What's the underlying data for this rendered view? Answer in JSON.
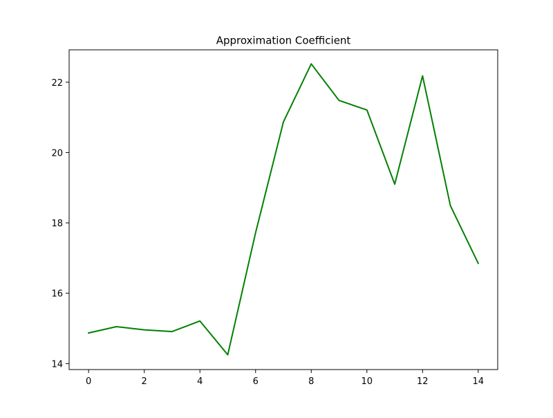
{
  "chart_data": {
    "type": "line",
    "title": "Approximation Coefficient",
    "xlabel": "",
    "ylabel": "",
    "xlim": [
      -0.7,
      14.7
    ],
    "ylim": [
      13.83,
      22.92
    ],
    "grid": false,
    "x_ticks": [
      0,
      2,
      4,
      6,
      8,
      10,
      12,
      14
    ],
    "y_ticks": [
      14,
      16,
      18,
      20,
      22
    ],
    "series": [
      {
        "color": "#008000",
        "x": [
          0,
          1,
          2,
          3,
          4,
          5,
          6,
          7,
          8,
          9,
          10,
          11,
          12,
          13,
          14
        ],
        "y": [
          14.87,
          15.05,
          14.96,
          14.91,
          15.21,
          14.25,
          17.72,
          20.87,
          22.52,
          21.48,
          21.21,
          19.1,
          22.18,
          18.49,
          16.85
        ]
      }
    ]
  }
}
